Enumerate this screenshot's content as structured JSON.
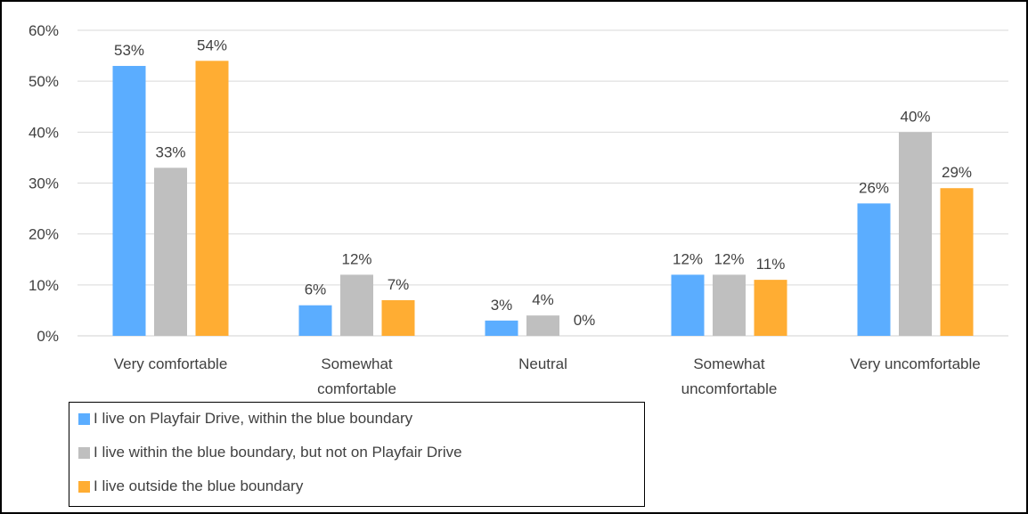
{
  "chart_data": {
    "type": "bar",
    "categories": [
      [
        "Very comfortable"
      ],
      [
        "Somewhat",
        "comfortable"
      ],
      [
        "Neutral"
      ],
      [
        "Somewhat",
        "uncomfortable"
      ],
      [
        "Very uncomfortable"
      ]
    ],
    "series": [
      {
        "name": "I live on Playfair Drive, within the blue boundary",
        "color": "#5BADFF",
        "values": [
          53,
          6,
          3,
          12,
          26
        ],
        "labels": [
          "53%",
          "6%",
          "3%",
          "12%",
          "26%"
        ]
      },
      {
        "name": "I live within the blue boundary, but not on Playfair Drive",
        "color": "#BFBFBF",
        "values": [
          33,
          12,
          4,
          12,
          40
        ],
        "labels": [
          "33%",
          "12%",
          "4%",
          "12%",
          "40%"
        ]
      },
      {
        "name": "I live outside the blue boundary",
        "color": "#FFAD33",
        "values": [
          54,
          7,
          0,
          11,
          29
        ],
        "labels": [
          "54%",
          "7%",
          "0%",
          "11%",
          "29%"
        ]
      }
    ],
    "yticks": [
      "0%",
      "10%",
      "20%",
      "30%",
      "40%",
      "50%",
      "60%"
    ],
    "ylim": [
      0,
      60
    ],
    "grid": true,
    "legend_position": "bottom-left",
    "title": "",
    "xlabel": "",
    "ylabel": ""
  }
}
